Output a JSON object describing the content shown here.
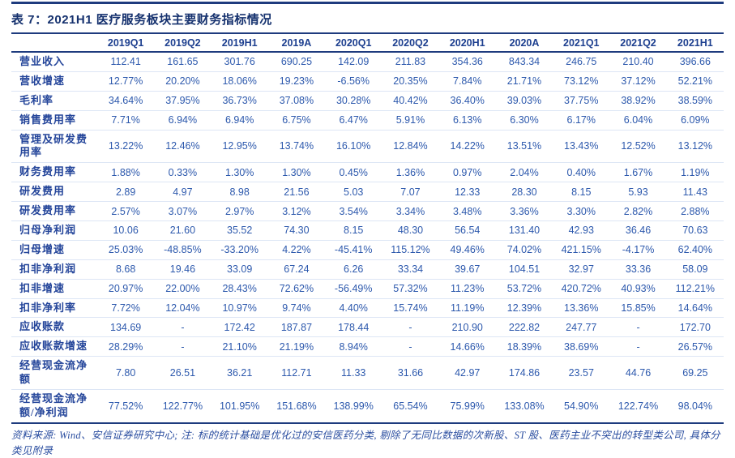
{
  "title": "表 7：2021H1 医疗服务板块主要财务指标情况",
  "table": {
    "columns": [
      "2019Q1",
      "2019Q2",
      "2019H1",
      "2019A",
      "2020Q1",
      "2020Q2",
      "2020H1",
      "2020A",
      "2021Q1",
      "2021Q2",
      "2021H1"
    ],
    "rows": [
      {
        "label": "营业收入",
        "values": [
          "112.41",
          "161.65",
          "301.76",
          "690.25",
          "142.09",
          "211.83",
          "354.36",
          "843.34",
          "246.75",
          "210.40",
          "396.66"
        ]
      },
      {
        "label": "营收增速",
        "values": [
          "12.77%",
          "20.20%",
          "18.06%",
          "19.23%",
          "-6.56%",
          "20.35%",
          "7.84%",
          "21.71%",
          "73.12%",
          "37.12%",
          "52.21%"
        ]
      },
      {
        "label": "毛利率",
        "values": [
          "34.64%",
          "37.95%",
          "36.73%",
          "37.08%",
          "30.28%",
          "40.42%",
          "36.40%",
          "39.03%",
          "37.75%",
          "38.92%",
          "38.59%"
        ]
      },
      {
        "label": "销售费用率",
        "values": [
          "7.71%",
          "6.94%",
          "6.94%",
          "6.75%",
          "6.47%",
          "5.91%",
          "6.13%",
          "6.30%",
          "6.17%",
          "6.04%",
          "6.09%"
        ]
      },
      {
        "label": "管理及研发费用率",
        "values": [
          "13.22%",
          "12.46%",
          "12.95%",
          "13.74%",
          "16.10%",
          "12.84%",
          "14.22%",
          "13.51%",
          "13.43%",
          "12.52%",
          "13.12%"
        ]
      },
      {
        "label": "财务费用率",
        "values": [
          "1.88%",
          "0.33%",
          "1.30%",
          "1.30%",
          "0.45%",
          "1.36%",
          "0.97%",
          "2.04%",
          "0.40%",
          "1.67%",
          "1.19%"
        ]
      },
      {
        "label": "研发费用",
        "values": [
          "2.89",
          "4.97",
          "8.98",
          "21.56",
          "5.03",
          "7.07",
          "12.33",
          "28.30",
          "8.15",
          "5.93",
          "11.43"
        ]
      },
      {
        "label": "研发费用率",
        "values": [
          "2.57%",
          "3.07%",
          "2.97%",
          "3.12%",
          "3.54%",
          "3.34%",
          "3.48%",
          "3.36%",
          "3.30%",
          "2.82%",
          "2.88%"
        ]
      },
      {
        "label": "归母净利润",
        "values": [
          "10.06",
          "21.60",
          "35.52",
          "74.30",
          "8.15",
          "48.30",
          "56.54",
          "131.40",
          "42.93",
          "36.46",
          "70.63"
        ]
      },
      {
        "label": "归母增速",
        "values": [
          "25.03%",
          "-48.85%",
          "-33.20%",
          "4.22%",
          "-45.41%",
          "115.12%",
          "49.46%",
          "74.02%",
          "421.15%",
          "-4.17%",
          "62.40%"
        ]
      },
      {
        "label": "扣非净利润",
        "values": [
          "8.68",
          "19.46",
          "33.09",
          "67.24",
          "6.26",
          "33.34",
          "39.67",
          "104.51",
          "32.97",
          "33.36",
          "58.09"
        ]
      },
      {
        "label": "扣非增速",
        "values": [
          "20.97%",
          "22.00%",
          "28.43%",
          "72.62%",
          "-56.49%",
          "57.32%",
          "11.23%",
          "53.72%",
          "420.72%",
          "40.93%",
          "112.21%"
        ]
      },
      {
        "label": "扣非净利率",
        "values": [
          "7.72%",
          "12.04%",
          "10.97%",
          "9.74%",
          "4.40%",
          "15.74%",
          "11.19%",
          "12.39%",
          "13.36%",
          "15.85%",
          "14.64%"
        ]
      },
      {
        "label": "应收账款",
        "values": [
          "134.69",
          "-",
          "172.42",
          "187.87",
          "178.44",
          "-",
          "210.90",
          "222.82",
          "247.77",
          "-",
          "172.70"
        ]
      },
      {
        "label": "应收账款增速",
        "values": [
          "28.29%",
          "-",
          "21.10%",
          "21.19%",
          "8.94%",
          "-",
          "14.66%",
          "18.39%",
          "38.69%",
          "-",
          "26.57%"
        ]
      },
      {
        "label": "经营现金流净额",
        "values": [
          "7.80",
          "26.51",
          "36.21",
          "112.71",
          "11.33",
          "31.66",
          "42.97",
          "174.86",
          "23.57",
          "44.76",
          "69.25"
        ]
      },
      {
        "label": "经营现金流净额/净利润",
        "values": [
          "77.52%",
          "122.77%",
          "101.95%",
          "151.68%",
          "138.99%",
          "65.54%",
          "75.99%",
          "133.08%",
          "54.90%",
          "122.74%",
          "98.04%"
        ]
      }
    ]
  },
  "footer": {
    "text": "资料来源: Wind、安信证券研究中心; 注: 标的统计基础是优化过的安信医药分类, 剔除了无同比数据的次新股、ST 股、医药主业不突出的转型类公司, 具体分类见附录"
  },
  "colors": {
    "rule_navy": "#1e3b7e",
    "title_text": "#15316e",
    "header_text": "#1d3f8f",
    "label_text": "#24459a",
    "value_text": "#2d59ad",
    "row_separator": "#dde6f5",
    "background": "#ffffff"
  }
}
